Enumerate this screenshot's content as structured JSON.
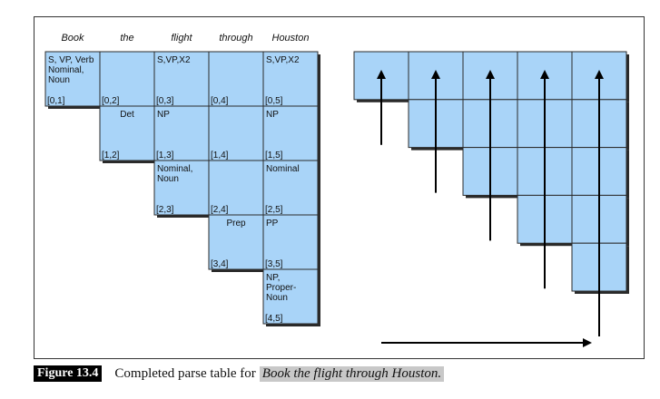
{
  "words": [
    "Book",
    "the",
    "flight",
    "through",
    "Houston"
  ],
  "cells": [
    {
      "row": 0,
      "col": 0,
      "lines": [
        "S, VP, Verb",
        "Nominal,",
        "Noun"
      ],
      "index": "[0,1]",
      "align": "left"
    },
    {
      "row": 0,
      "col": 1,
      "lines": [],
      "index": "[0,2]",
      "align": "left"
    },
    {
      "row": 0,
      "col": 2,
      "lines": [
        "S,VP,X2"
      ],
      "index": "[0,3]",
      "align": "left"
    },
    {
      "row": 0,
      "col": 3,
      "lines": [],
      "index": "[0,4]",
      "align": "left"
    },
    {
      "row": 0,
      "col": 4,
      "lines": [
        "S,VP,X2"
      ],
      "index": "[0,5]",
      "align": "left"
    },
    {
      "row": 1,
      "col": 1,
      "lines": [
        "Det"
      ],
      "index": "[1,2]",
      "align": "center"
    },
    {
      "row": 1,
      "col": 2,
      "lines": [
        "NP"
      ],
      "index": "[1,3]",
      "align": "left"
    },
    {
      "row": 1,
      "col": 3,
      "lines": [],
      "index": "[1,4]",
      "align": "left"
    },
    {
      "row": 1,
      "col": 4,
      "lines": [
        "NP"
      ],
      "index": "[1,5]",
      "align": "left"
    },
    {
      "row": 2,
      "col": 2,
      "lines": [
        "Nominal,",
        "Noun"
      ],
      "index": "[2,3]",
      "align": "left"
    },
    {
      "row": 2,
      "col": 3,
      "lines": [],
      "index": "[2,4]",
      "align": "left"
    },
    {
      "row": 2,
      "col": 4,
      "lines": [
        "Nominal"
      ],
      "index": "[2,5]",
      "align": "left"
    },
    {
      "row": 3,
      "col": 3,
      "lines": [
        "Prep"
      ],
      "index": "[3,4]",
      "align": "center"
    },
    {
      "row": 3,
      "col": 4,
      "lines": [
        "PP"
      ],
      "index": "[3,5]",
      "align": "left"
    },
    {
      "row": 4,
      "col": 4,
      "lines": [
        "NP,",
        "Proper-",
        "Noun"
      ],
      "index": "[4,5]",
      "align": "left"
    }
  ],
  "colors": {
    "cell_fill": "#a9d4f8",
    "cell_stroke": "#2b2b2b",
    "shadow": "#2a2a2a",
    "arrow": "#000000"
  },
  "caption": {
    "label": "Figure 13.4",
    "text": "Completed parse table for",
    "italic": "Book the flight through Houston."
  }
}
